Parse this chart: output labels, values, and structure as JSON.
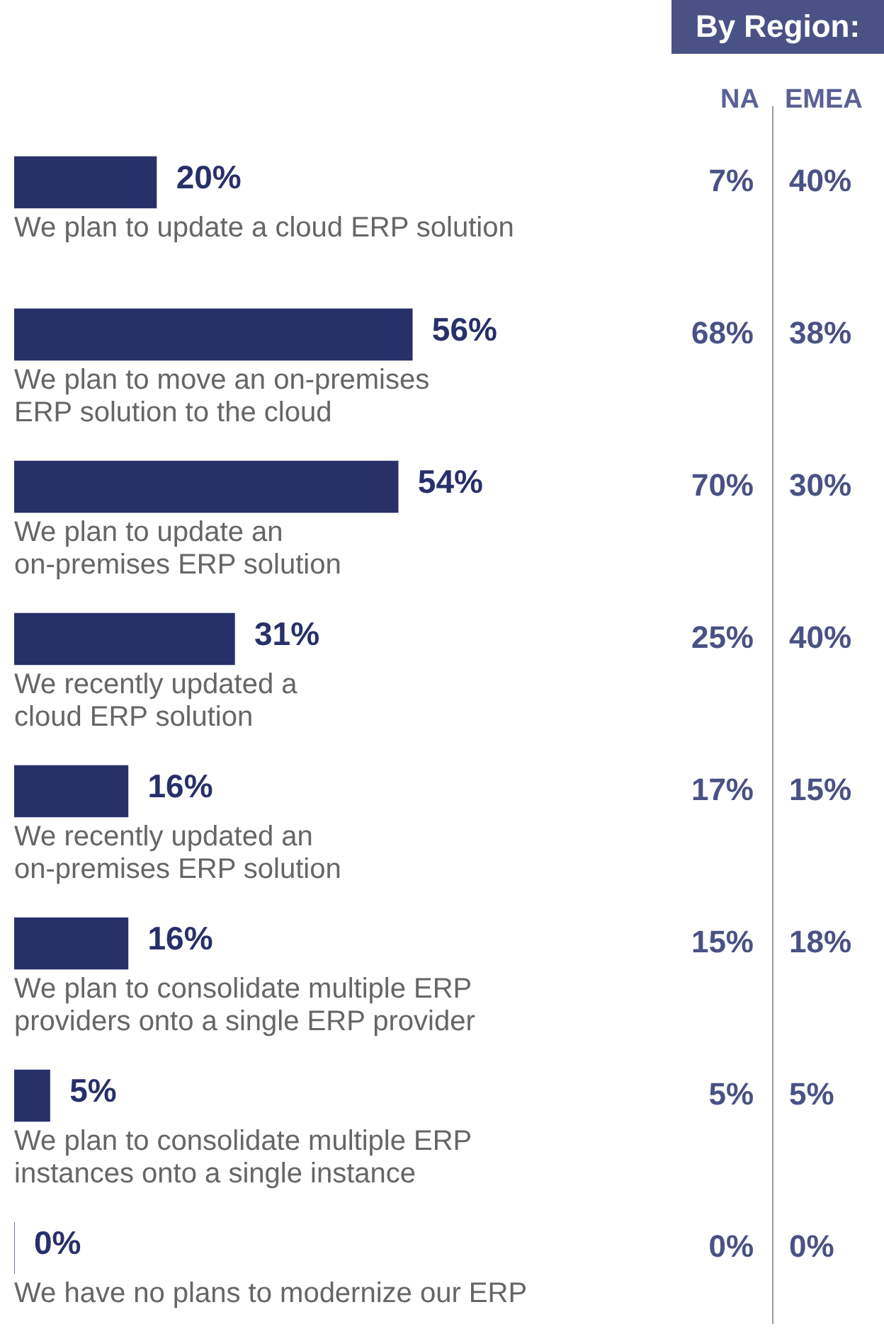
{
  "chart_data": [
    {
      "type": "bar",
      "orientation": "horizontal",
      "tick_labels": false,
      "color": "#28306a",
      "categories": [
        "We plan to update a cloud ERP solution",
        "We plan to move an on-premises\nERP solution to the cloud",
        "We plan to update an\non-premises ERP solution",
        "We recently updated a\ncloud ERP solution",
        "We recently updated an\non-premises ERP solution",
        "We plan to consolidate multiple ERP\nproviders onto a single ERP provider",
        "We plan to consolidate multiple ERP\ninstances onto a single instance",
        "We have no plans to modernize our ERP"
      ],
      "values": [
        20,
        56,
        54,
        31,
        16,
        16,
        5,
        0
      ],
      "value_labels": [
        "20%",
        "56%",
        "54%",
        "31%",
        "16%",
        "16%",
        "5%",
        "0%"
      ]
    },
    {
      "type": "heatmap",
      "title": "By Region:",
      "categories": [
        "NA",
        "EMEA"
      ],
      "y_categories": [
        null,
        null,
        null,
        null,
        null,
        null,
        null,
        null
      ],
      "cells": [
        [
          7,
          40
        ],
        [
          68,
          38
        ],
        [
          70,
          30
        ],
        [
          25,
          40
        ],
        [
          17,
          15
        ],
        [
          15,
          18
        ],
        [
          5,
          5
        ],
        [
          0,
          0
        ]
      ],
      "cell_labels": [
        [
          "7%",
          "40%"
        ],
        [
          "68%",
          "38%"
        ],
        [
          "70%",
          "30%"
        ],
        [
          "25%",
          "40%"
        ],
        [
          "17%",
          "15%"
        ],
        [
          "15%",
          "18%"
        ],
        [
          "5%",
          "5%"
        ],
        [
          "0%",
          "0%"
        ]
      ]
    }
  ]
}
